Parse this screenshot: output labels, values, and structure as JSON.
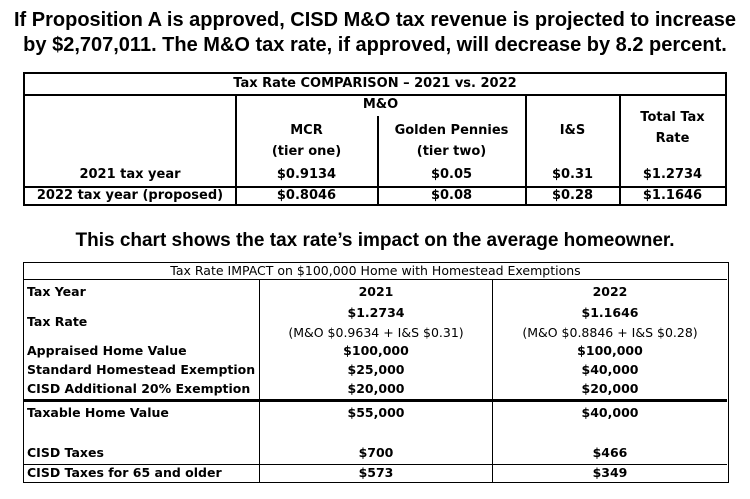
{
  "headline": {
    "line1": "If Proposition A is approved, CISD M&O tax revenue is projected to increase",
    "line2": "by $2,707,011. The M&O tax rate, if approved, will decrease by 8.2 percent."
  },
  "comparison_table": {
    "title": "Tax Rate COMPARISON – 2021 vs. 2022",
    "group_header": "M&O",
    "col_mcr": [
      "MCR",
      "(tier one)"
    ],
    "col_golden": [
      "Golden Pennies",
      "(tier two)"
    ],
    "col_is": "I&S",
    "col_total": [
      "Total Tax",
      "Rate"
    ],
    "rows": [
      {
        "label": "2021 tax year",
        "mcr": "$0.9134",
        "golden": "$0.05",
        "is": "$0.31",
        "total": "$1.2734"
      },
      {
        "label": "2022 tax year (proposed)",
        "mcr": "$0.8046",
        "golden": "$0.08",
        "is": "$0.28",
        "total": "$1.1646"
      }
    ]
  },
  "subhead": "This chart shows the tax rate’s impact on the average homeowner.",
  "impact_table": {
    "title": "Tax Rate IMPACT on $100,000 Home with Homestead Exemptions",
    "header": {
      "label": "Tax Year",
      "y2021": "2021",
      "y2022": "2022"
    },
    "tax_rate": {
      "label": "Tax Rate",
      "y2021": "$1.2734",
      "y2021_sub": "(M&O $0.9634 + I&S $0.31)",
      "y2022": "$1.1646",
      "y2022_sub": "(M&O $0.8846 + I&S $0.28)"
    },
    "rows": [
      {
        "label": "Appraised Home Value",
        "y2021": "$100,000",
        "y2022": "$100,000"
      },
      {
        "label": "Standard Homestead Exemption",
        "y2021": "$25,000",
        "y2022": "$40,000"
      },
      {
        "label": "CISD Additional 20% Exemption",
        "y2021": "$20,000",
        "y2022": "$20,000"
      }
    ],
    "taxable": {
      "label": "Taxable Home Value",
      "y2021": "$55,000",
      "y2022": "$40,000"
    },
    "taxes": {
      "label": "CISD Taxes",
      "y2021": "$700",
      "y2022": "$466"
    },
    "taxes65": {
      "label": "CISD Taxes for 65 and older",
      "y2021": "$573",
      "y2022": "$349"
    }
  }
}
